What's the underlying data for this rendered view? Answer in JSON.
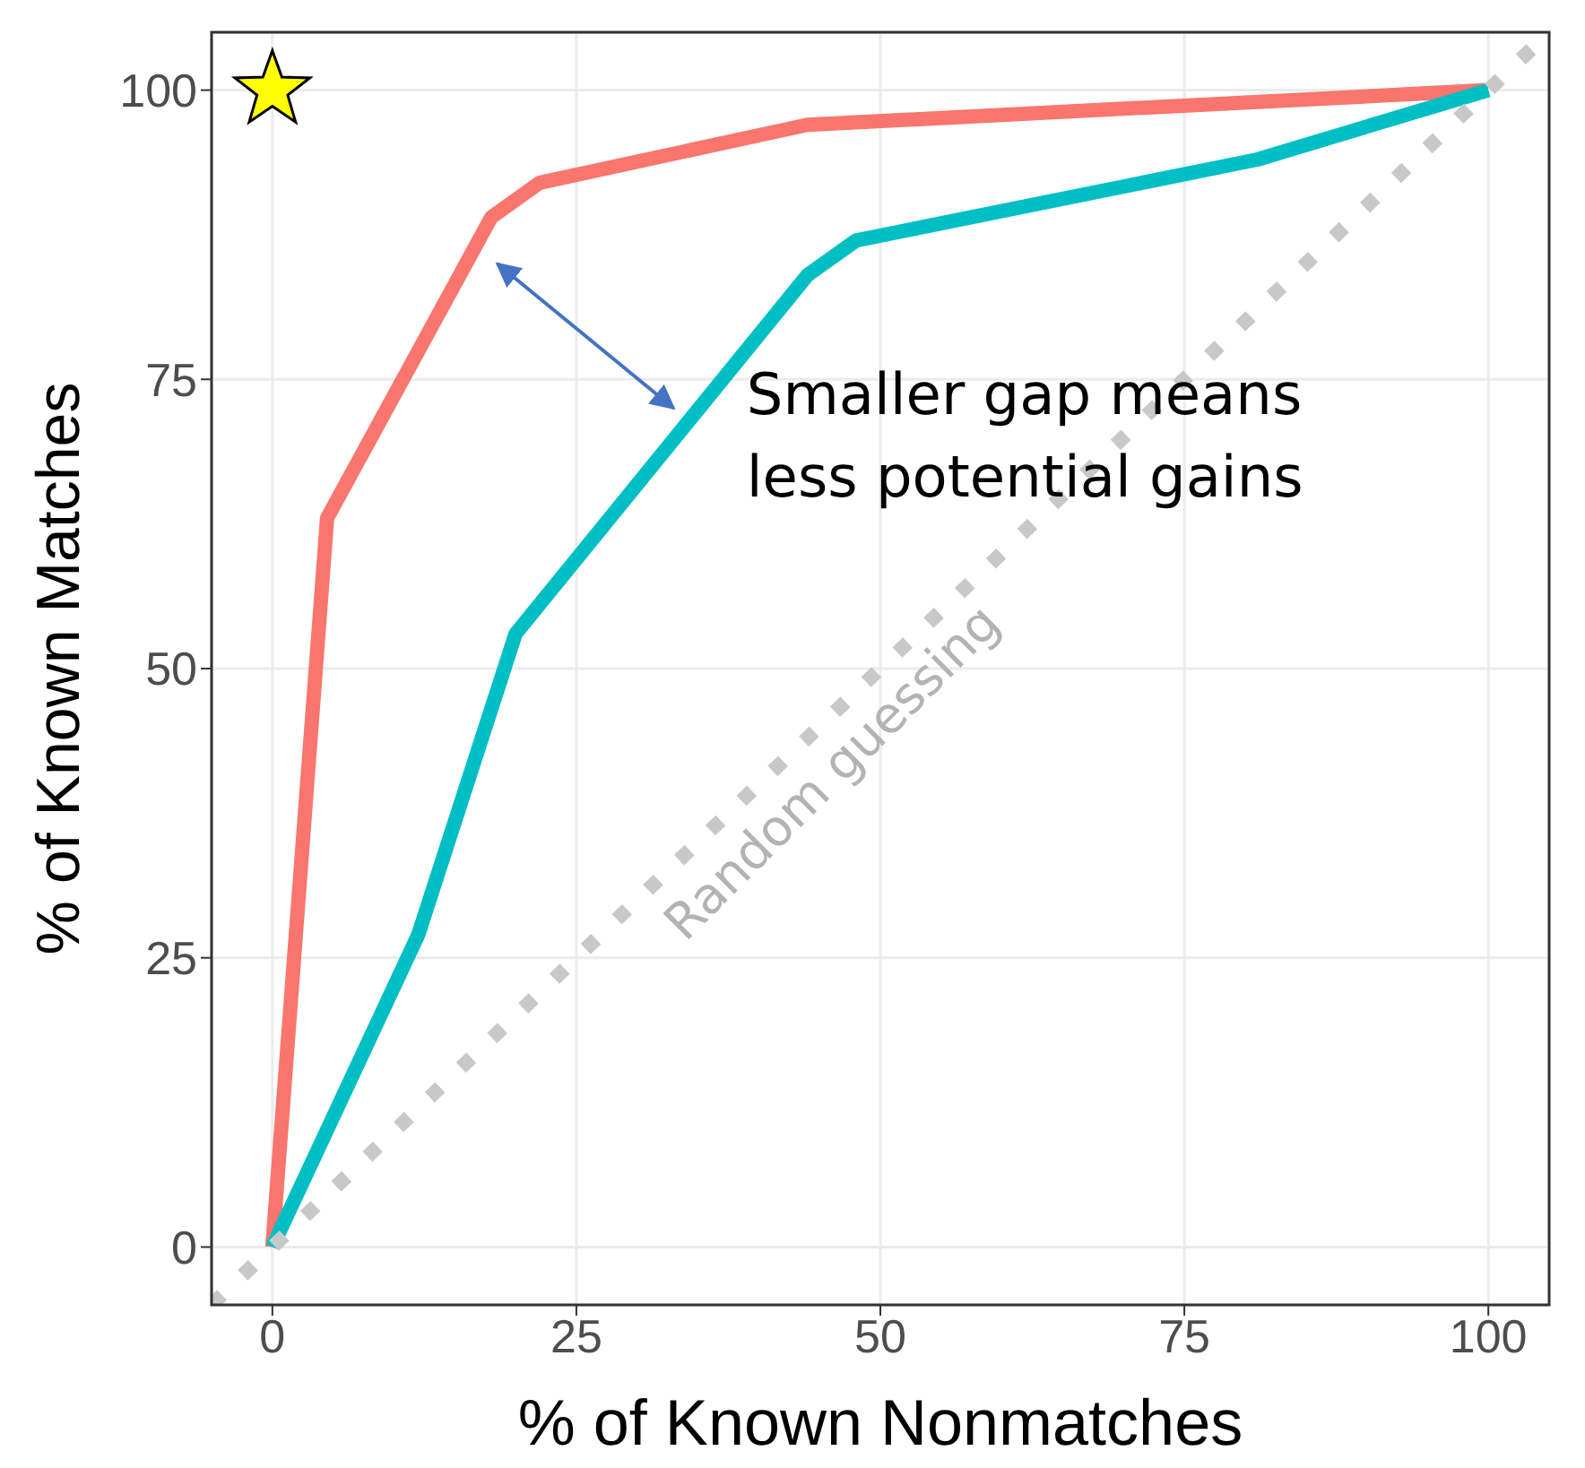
{
  "chart_data": {
    "type": "line",
    "xlabel": "% of Known Nonmatches",
    "ylabel": "% of Known Matches",
    "series": [
      {
        "color": "#f8766d",
        "x": [
          0,
          4.5,
          18,
          22,
          44,
          100
        ],
        "values": [
          0,
          63,
          89,
          92,
          97,
          100
        ]
      },
      {
        "color": "#00bfc4",
        "x": [
          0,
          12,
          20,
          44,
          48,
          81,
          100
        ],
        "values": [
          0,
          27,
          53,
          84,
          87,
          94,
          100
        ]
      },
      {
        "color": "#c8c8c8",
        "x": [
          -5,
          105
        ],
        "values": [
          -5,
          105
        ],
        "line_style": "dotted"
      }
    ],
    "annotations": [
      "Smaller gap means less potential gains",
      "Random guessing"
    ],
    "xlim": [
      -5,
      105
    ],
    "ylim": [
      -5,
      105
    ],
    "xticks": [
      0,
      25,
      50,
      75,
      100
    ],
    "yticks": [
      0,
      25,
      50,
      75,
      100
    ],
    "grid": true,
    "marker": "none",
    "line_style": "solid",
    "legend": false
  }
}
